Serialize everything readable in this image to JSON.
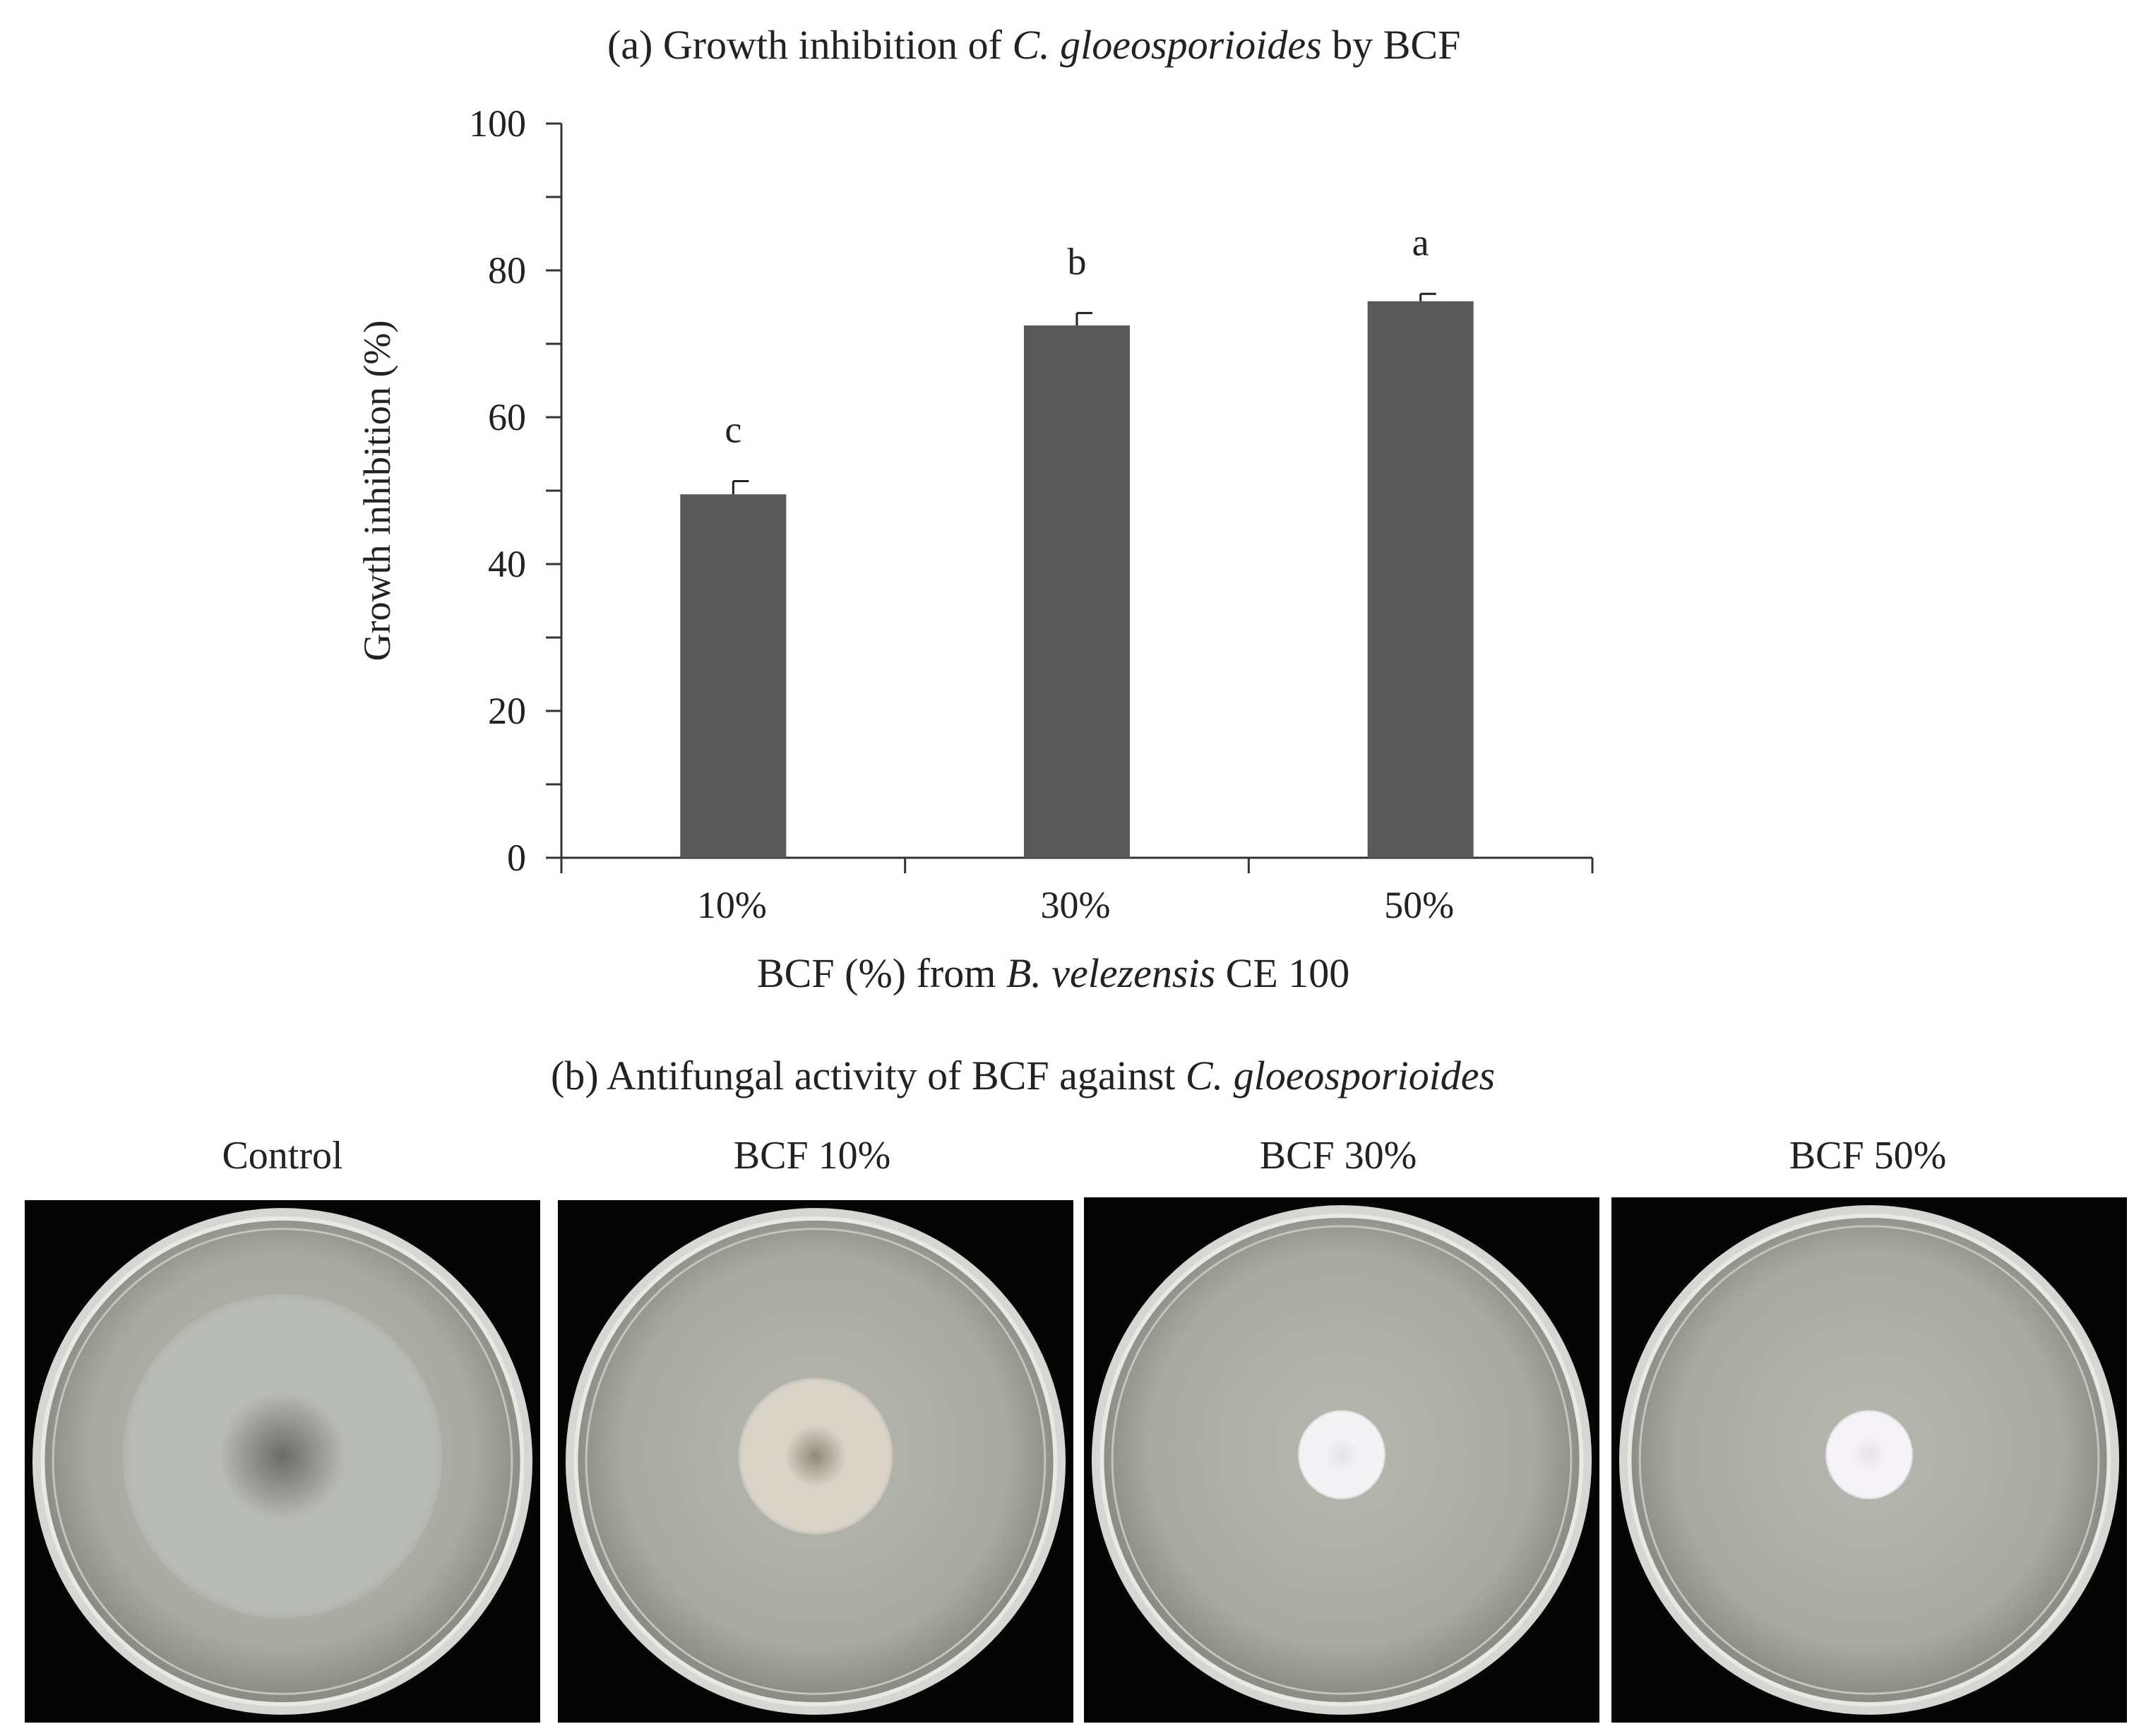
{
  "panel_a": {
    "title_prefix": "(a) Growth inhibition of",
    "title_species": "C. gloeosporioides",
    "title_suffix": "by BCF"
  },
  "panel_b": {
    "title_prefix": "(b) Antifungal activity of BCF against",
    "title_species": "C. gloeosporioides",
    "plates": [
      {
        "label": "Control",
        "colony_diameter_fraction": 0.62,
        "colony_color": "#b9bbb6",
        "center_color": "#6a6b66"
      },
      {
        "label": "BCF 10%",
        "colony_diameter_fraction": 0.3,
        "colony_color": "#d9d3c8",
        "center_color": "#8d8a7a"
      },
      {
        "label": "BCF 30%",
        "colony_diameter_fraction": 0.17,
        "colony_color": "#f3f2f4",
        "center_color": "#e4e2e6"
      },
      {
        "label": "BCF 50%",
        "colony_diameter_fraction": 0.17,
        "colony_color": "#f5f3f7",
        "center_color": "#e6e3e8"
      }
    ]
  },
  "chart_data": {
    "type": "bar",
    "categories": [
      "10%",
      "30%",
      "50%"
    ],
    "values": [
      49.5,
      72.5,
      75.8
    ],
    "errors": [
      1.8,
      1.7,
      1.0
    ],
    "significance_letters": [
      "c",
      "b",
      "a"
    ],
    "ylabel": "Growth inhibition (%)",
    "xlabel_prefix": "BCF (%) from",
    "xlabel_species": "B. velezensis",
    "xlabel_suffix": "CE 100",
    "ylim": [
      0,
      100
    ],
    "yticks": [
      0,
      20,
      40,
      60,
      80,
      100
    ],
    "bar_color": "#595959",
    "grid": false,
    "legend": "none"
  }
}
